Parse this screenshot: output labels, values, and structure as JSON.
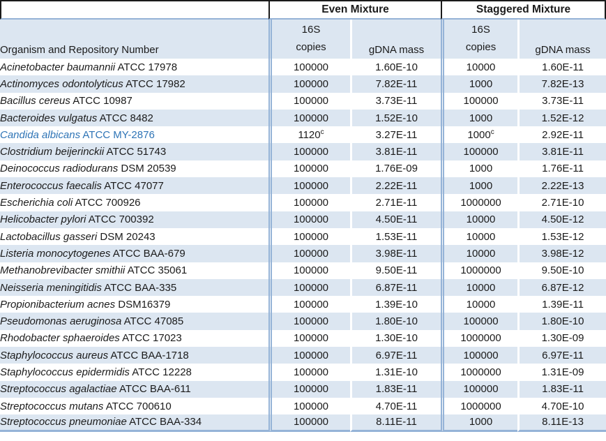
{
  "table": {
    "group_headers": {
      "even": "Even Mixture",
      "staggered": "Staggered Mixture"
    },
    "column_headers": {
      "organism": "Organism and Repository Number",
      "copies_line1": "16S",
      "copies_line2": "copies",
      "gdna": "gDNA mass"
    },
    "colors": {
      "band_blue": "#DCE6F1",
      "rule_blue": "#95B3D7",
      "rule_dark": "#1A1A1A",
      "highlight_text": "#2E74B6"
    },
    "footnote_marker": "c",
    "rows": [
      {
        "organism_italic": "Acinetobacter baumannii",
        "organism_rest": "ATCC 17978",
        "even_copies": "100000",
        "even_sup": "",
        "even_gdna": "1.60E-10",
        "stag_copies": "10000",
        "stag_sup": "",
        "stag_gdna": "1.60E-11",
        "highlight": false
      },
      {
        "organism_italic": "Actinomyces odontolyticus",
        "organism_rest": "ATCC 17982",
        "even_copies": "100000",
        "even_sup": "",
        "even_gdna": "7.82E-11",
        "stag_copies": "1000",
        "stag_sup": "",
        "stag_gdna": "7.82E-13",
        "highlight": false
      },
      {
        "organism_italic": "Bacillus cereus",
        "organism_rest": "ATCC 10987",
        "even_copies": "100000",
        "even_sup": "",
        "even_gdna": "3.73E-11",
        "stag_copies": "100000",
        "stag_sup": "",
        "stag_gdna": "3.73E-11",
        "highlight": false
      },
      {
        "organism_italic": "Bacteroides vulgatus",
        "organism_rest": "ATCC 8482",
        "even_copies": "100000",
        "even_sup": "",
        "even_gdna": "1.52E-10",
        "stag_copies": "1000",
        "stag_sup": "",
        "stag_gdna": "1.52E-12",
        "highlight": false
      },
      {
        "organism_italic": "Candida albicans",
        "organism_rest": "ATCC MY-2876",
        "even_copies": "1120",
        "even_sup": "c",
        "even_gdna": "3.27E-11",
        "stag_copies": "1000",
        "stag_sup": "c",
        "stag_gdna": "2.92E-11",
        "highlight": true
      },
      {
        "organism_italic": "Clostridium beijerinckii",
        "organism_rest": "ATCC 51743",
        "even_copies": "100000",
        "even_sup": "",
        "even_gdna": "3.81E-11",
        "stag_copies": "100000",
        "stag_sup": "",
        "stag_gdna": "3.81E-11",
        "highlight": false
      },
      {
        "organism_italic": "Deinococcus radiodurans",
        "organism_rest": "DSM 20539",
        "even_copies": "100000",
        "even_sup": "",
        "even_gdna": "1.76E-09",
        "stag_copies": "1000",
        "stag_sup": "",
        "stag_gdna": "1.76E-11",
        "highlight": false
      },
      {
        "organism_italic": "Enterococcus faecalis",
        "organism_rest": "ATCC 47077",
        "even_copies": "100000",
        "even_sup": "",
        "even_gdna": "2.22E-11",
        "stag_copies": "1000",
        "stag_sup": "",
        "stag_gdna": "2.22E-13",
        "highlight": false
      },
      {
        "organism_italic": "Escherichia coli",
        "organism_rest": "ATCC 700926",
        "even_copies": "100000",
        "even_sup": "",
        "even_gdna": "2.71E-11",
        "stag_copies": "1000000",
        "stag_sup": "",
        "stag_gdna": "2.71E-10",
        "highlight": false
      },
      {
        "organism_italic": "Helicobacter pylori",
        "organism_rest": "ATCC 700392",
        "even_copies": "100000",
        "even_sup": "",
        "even_gdna": "4.50E-11",
        "stag_copies": "10000",
        "stag_sup": "",
        "stag_gdna": "4.50E-12",
        "highlight": false
      },
      {
        "organism_italic": "Lactobacillus gasseri",
        "organism_rest": "DSM 20243",
        "even_copies": "100000",
        "even_sup": "",
        "even_gdna": "1.53E-11",
        "stag_copies": "10000",
        "stag_sup": "",
        "stag_gdna": "1.53E-12",
        "highlight": false
      },
      {
        "organism_italic": "Listeria monocytogenes",
        "organism_rest": "ATCC BAA-679",
        "even_copies": "100000",
        "even_sup": "",
        "even_gdna": "3.98E-11",
        "stag_copies": "10000",
        "stag_sup": "",
        "stag_gdna": "3.98E-12",
        "highlight": false
      },
      {
        "organism_italic": "Methanobrevibacter smithii",
        "organism_rest": "ATCC 35061",
        "even_copies": "100000",
        "even_sup": "",
        "even_gdna": "9.50E-11",
        "stag_copies": "1000000",
        "stag_sup": "",
        "stag_gdna": "9.50E-10",
        "highlight": false
      },
      {
        "organism_italic": "Neisseria meningitidis",
        "organism_rest": "ATCC BAA-335",
        "even_copies": "100000",
        "even_sup": "",
        "even_gdna": "6.87E-11",
        "stag_copies": "10000",
        "stag_sup": "",
        "stag_gdna": "6.87E-12",
        "highlight": false
      },
      {
        "organism_italic": "Propionibacterium acnes",
        "organism_rest": "DSM16379",
        "even_copies": "100000",
        "even_sup": "",
        "even_gdna": "1.39E-10",
        "stag_copies": "10000",
        "stag_sup": "",
        "stag_gdna": "1.39E-11",
        "highlight": false
      },
      {
        "organism_italic": "Pseudomonas aeruginosa",
        "organism_rest": "ATCC 47085",
        "even_copies": "100000",
        "even_sup": "",
        "even_gdna": "1.80E-10",
        "stag_copies": "100000",
        "stag_sup": "",
        "stag_gdna": "1.80E-10",
        "highlight": false
      },
      {
        "organism_italic": "Rhodobacter sphaeroides",
        "organism_rest": "ATCC 17023",
        "even_copies": "100000",
        "even_sup": "",
        "even_gdna": "1.30E-10",
        "stag_copies": "1000000",
        "stag_sup": "",
        "stag_gdna": "1.30E-09",
        "highlight": false
      },
      {
        "organism_italic": "Staphylococcus aureus",
        "organism_rest": "ATCC BAA-1718",
        "even_copies": "100000",
        "even_sup": "",
        "even_gdna": "6.97E-11",
        "stag_copies": "100000",
        "stag_sup": "",
        "stag_gdna": "6.97E-11",
        "highlight": false
      },
      {
        "organism_italic": "Staphylococcus epidermidis",
        "organism_rest": "ATCC 12228",
        "even_copies": "100000",
        "even_sup": "",
        "even_gdna": "1.31E-10",
        "stag_copies": "1000000",
        "stag_sup": "",
        "stag_gdna": "1.31E-09",
        "highlight": false
      },
      {
        "organism_italic": "Streptococcus agalactiae",
        "organism_rest": "ATCC BAA-611",
        "even_copies": "100000",
        "even_sup": "",
        "even_gdna": "1.83E-11",
        "stag_copies": "100000",
        "stag_sup": "",
        "stag_gdna": "1.83E-11",
        "highlight": false
      },
      {
        "organism_italic": "Streptococcus mutans",
        "organism_rest": "ATCC 700610",
        "even_copies": "100000",
        "even_sup": "",
        "even_gdna": "4.70E-11",
        "stag_copies": "1000000",
        "stag_sup": "",
        "stag_gdna": "4.70E-10",
        "highlight": false
      },
      {
        "organism_italic": "Streptococcus pneumoniae",
        "organism_rest": "ATCC BAA-334",
        "even_copies": "100000",
        "even_sup": "",
        "even_gdna": "8.11E-11",
        "stag_copies": "1000",
        "stag_sup": "",
        "stag_gdna": "8.11E-13",
        "highlight": false
      }
    ]
  }
}
